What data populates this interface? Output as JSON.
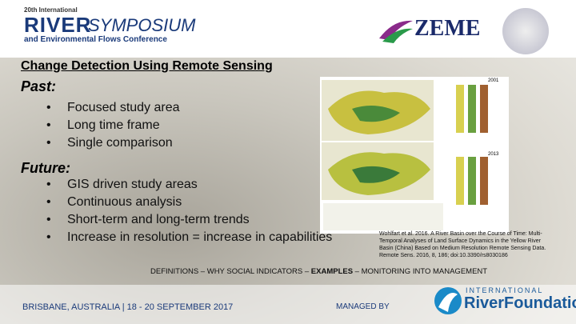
{
  "header": {
    "event_small": "20th International",
    "event_river": "RIVER",
    "event_symposium": "SYMPOSIUM",
    "event_sub": "and Environmental Flows Conference",
    "partner": "ZEME"
  },
  "title": "Change Detection Using Remote Sensing",
  "past": {
    "heading": "Past:",
    "bullets": [
      "Focused study area",
      "Long time frame",
      "Single comparison"
    ]
  },
  "future": {
    "heading": "Future:",
    "bullets": [
      "GIS driven study areas",
      "Continuous analysis",
      "Short-term and long-term trends",
      "Increase in resolution = increase in capabilities"
    ]
  },
  "figure": {
    "years": [
      "2001",
      "2013"
    ]
  },
  "citation": "Wohlfart et al. 2016. A River Basin over the Course of Time: Multi-Temporal Analyses of Land Surface Dynamics in the Yellow River Basin (China) Based on Medium Resolution Remote Sensing Data. Remote Sens. 2016, 8, 186; doi:10.3390/rs8030186",
  "nav": [
    "DEFINITIONS – WHY SOCIAL INDICATORS – ",
    "EXAMPLES",
    " – MONITORING INTO MANAGEMENT"
  ],
  "footer": {
    "location": "BRISBANE, AUSTRALIA | 18 - 20 SEPTEMBER 2017",
    "managed": "MANAGED BY",
    "org_small": "INTERNATIONAL",
    "org": "RiverFoundation"
  }
}
